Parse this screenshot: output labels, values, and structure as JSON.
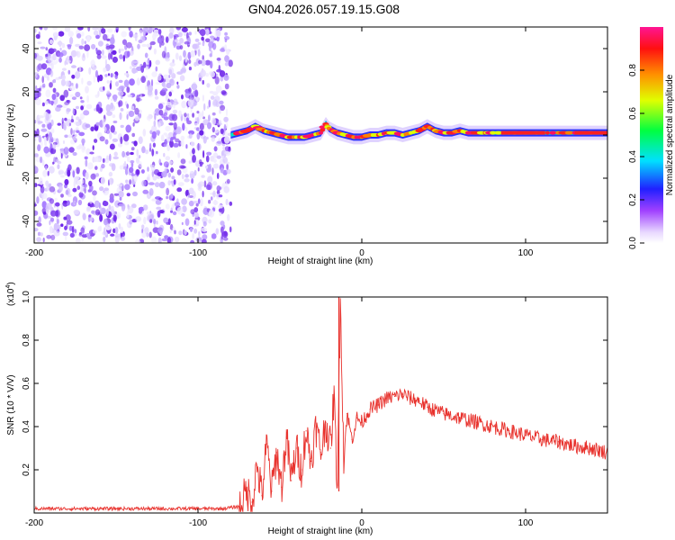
{
  "title": "GN04.2026.057.19.15.G08",
  "chart_data": [
    {
      "type": "heatmap",
      "name": "spectrogram",
      "xlabel": "Height of straight line (km)",
      "ylabel": "Frequency (Hz)",
      "xlim": [
        -200,
        150
      ],
      "ylim": [
        -50,
        50
      ],
      "xticks": [
        -200,
        -100,
        0,
        100
      ],
      "yticks": [
        -40,
        -20,
        0,
        20,
        40
      ],
      "noise_region_x": [
        -200,
        -80
      ],
      "colorbar": {
        "label": "Normalized spectral amplitude",
        "range": [
          0.0,
          1.0
        ],
        "ticks": [
          0.0,
          0.2,
          0.4,
          0.6,
          0.8
        ]
      },
      "ridge": {
        "x": [
          -80,
          -75,
          -70,
          -65,
          -60,
          -55,
          -50,
          -45,
          -40,
          -35,
          -30,
          -25,
          -22,
          -20,
          -15,
          -10,
          -5,
          0,
          5,
          10,
          15,
          20,
          25,
          30,
          35,
          40,
          45,
          50,
          55,
          60,
          65,
          70,
          75,
          80,
          90,
          100,
          110,
          120,
          130,
          140,
          150
        ],
        "y": [
          0,
          1,
          2,
          4,
          2,
          1,
          0,
          -1,
          -1,
          -1,
          0,
          1,
          5,
          3,
          1,
          0,
          -1,
          -1,
          0,
          0,
          1,
          1,
          0,
          1,
          2,
          4,
          2,
          1,
          1,
          2,
          1,
          1,
          1,
          1,
          1,
          1,
          1,
          1,
          1,
          1,
          1
        ]
      }
    },
    {
      "type": "line",
      "name": "snr",
      "xlabel": "Height of straight line (km)",
      "ylabel": "SNR (10 * V/V)",
      "scale_label": "(x10",
      "scale_exponent": "4",
      "scale_suffix": ")",
      "xlim": [
        -200,
        150
      ],
      "ylim": [
        0.0,
        1.0
      ],
      "xticks": [
        -200,
        -100,
        0,
        100
      ],
      "yticks": [
        0.2,
        0.4,
        0.6,
        0.8,
        1.0
      ],
      "ytick_labels": [
        "0.2",
        "0.4",
        "0.6",
        "0.8",
        "1.0"
      ],
      "series": [
        {
          "name": "SNR",
          "color": "#e8322d",
          "x": [
            -200,
            -150,
            -100,
            -85,
            -75,
            -70,
            -67,
            -64,
            -61,
            -58,
            -55,
            -52,
            -49,
            -46,
            -43,
            -40,
            -37,
            -34,
            -31,
            -28,
            -25,
            -22,
            -19,
            -17,
            -15,
            -13,
            -11,
            -9,
            -6,
            -3,
            0,
            5,
            10,
            15,
            20,
            25,
            30,
            35,
            40,
            50,
            60,
            70,
            80,
            90,
            100,
            110,
            120,
            130,
            140,
            150
          ],
          "y": [
            0.02,
            0.02,
            0.02,
            0.02,
            0.03,
            0.1,
            0.05,
            0.22,
            0.08,
            0.32,
            0.1,
            0.28,
            0.12,
            0.35,
            0.15,
            0.3,
            0.2,
            0.38,
            0.24,
            0.4,
            0.28,
            0.42,
            0.3,
            0.55,
            0.12,
            1.0,
            0.25,
            0.46,
            0.34,
            0.44,
            0.42,
            0.48,
            0.5,
            0.53,
            0.54,
            0.55,
            0.53,
            0.52,
            0.49,
            0.46,
            0.44,
            0.42,
            0.4,
            0.38,
            0.36,
            0.34,
            0.33,
            0.31,
            0.3,
            0.28
          ]
        }
      ]
    }
  ]
}
